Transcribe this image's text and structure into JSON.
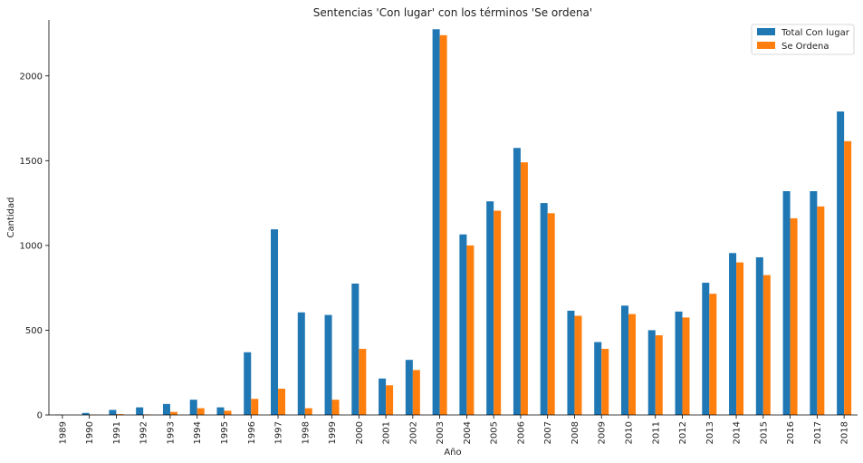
{
  "chart_data": {
    "type": "bar",
    "title": "Sentencias 'Con lugar' con los términos 'Se ordena'",
    "xlabel": "Año",
    "ylabel": "Cantidad",
    "ylim": [
      0,
      2330
    ],
    "yticks": [
      0,
      500,
      1000,
      1500,
      2000
    ],
    "grid": false,
    "legend_position": "top-right",
    "categories": [
      "1989",
      "1990",
      "1991",
      "1992",
      "1993",
      "1994",
      "1995",
      "1996",
      "1997",
      "1998",
      "1999",
      "2000",
      "2001",
      "2002",
      "2003",
      "2004",
      "2005",
      "2006",
      "2007",
      "2008",
      "2009",
      "2010",
      "2011",
      "2012",
      "2013",
      "2014",
      "2015",
      "2016",
      "2017",
      "2018"
    ],
    "series": [
      {
        "name": "Total Con lugar",
        "color": "#1f77b4",
        "values": [
          2,
          12,
          30,
          45,
          65,
          90,
          45,
          370,
          1095,
          605,
          590,
          775,
          215,
          325,
          2275,
          1065,
          1260,
          1575,
          1250,
          615,
          430,
          645,
          500,
          610,
          780,
          955,
          930,
          1320,
          1320,
          1790
        ]
      },
      {
        "name": "Se Ordena",
        "color": "#ff7f0e",
        "values": [
          0,
          2,
          5,
          3,
          18,
          40,
          25,
          95,
          155,
          40,
          90,
          390,
          175,
          265,
          2240,
          1000,
          1205,
          1490,
          1190,
          585,
          390,
          595,
          470,
          575,
          715,
          900,
          825,
          1160,
          1230,
          1615
        ]
      }
    ]
  }
}
